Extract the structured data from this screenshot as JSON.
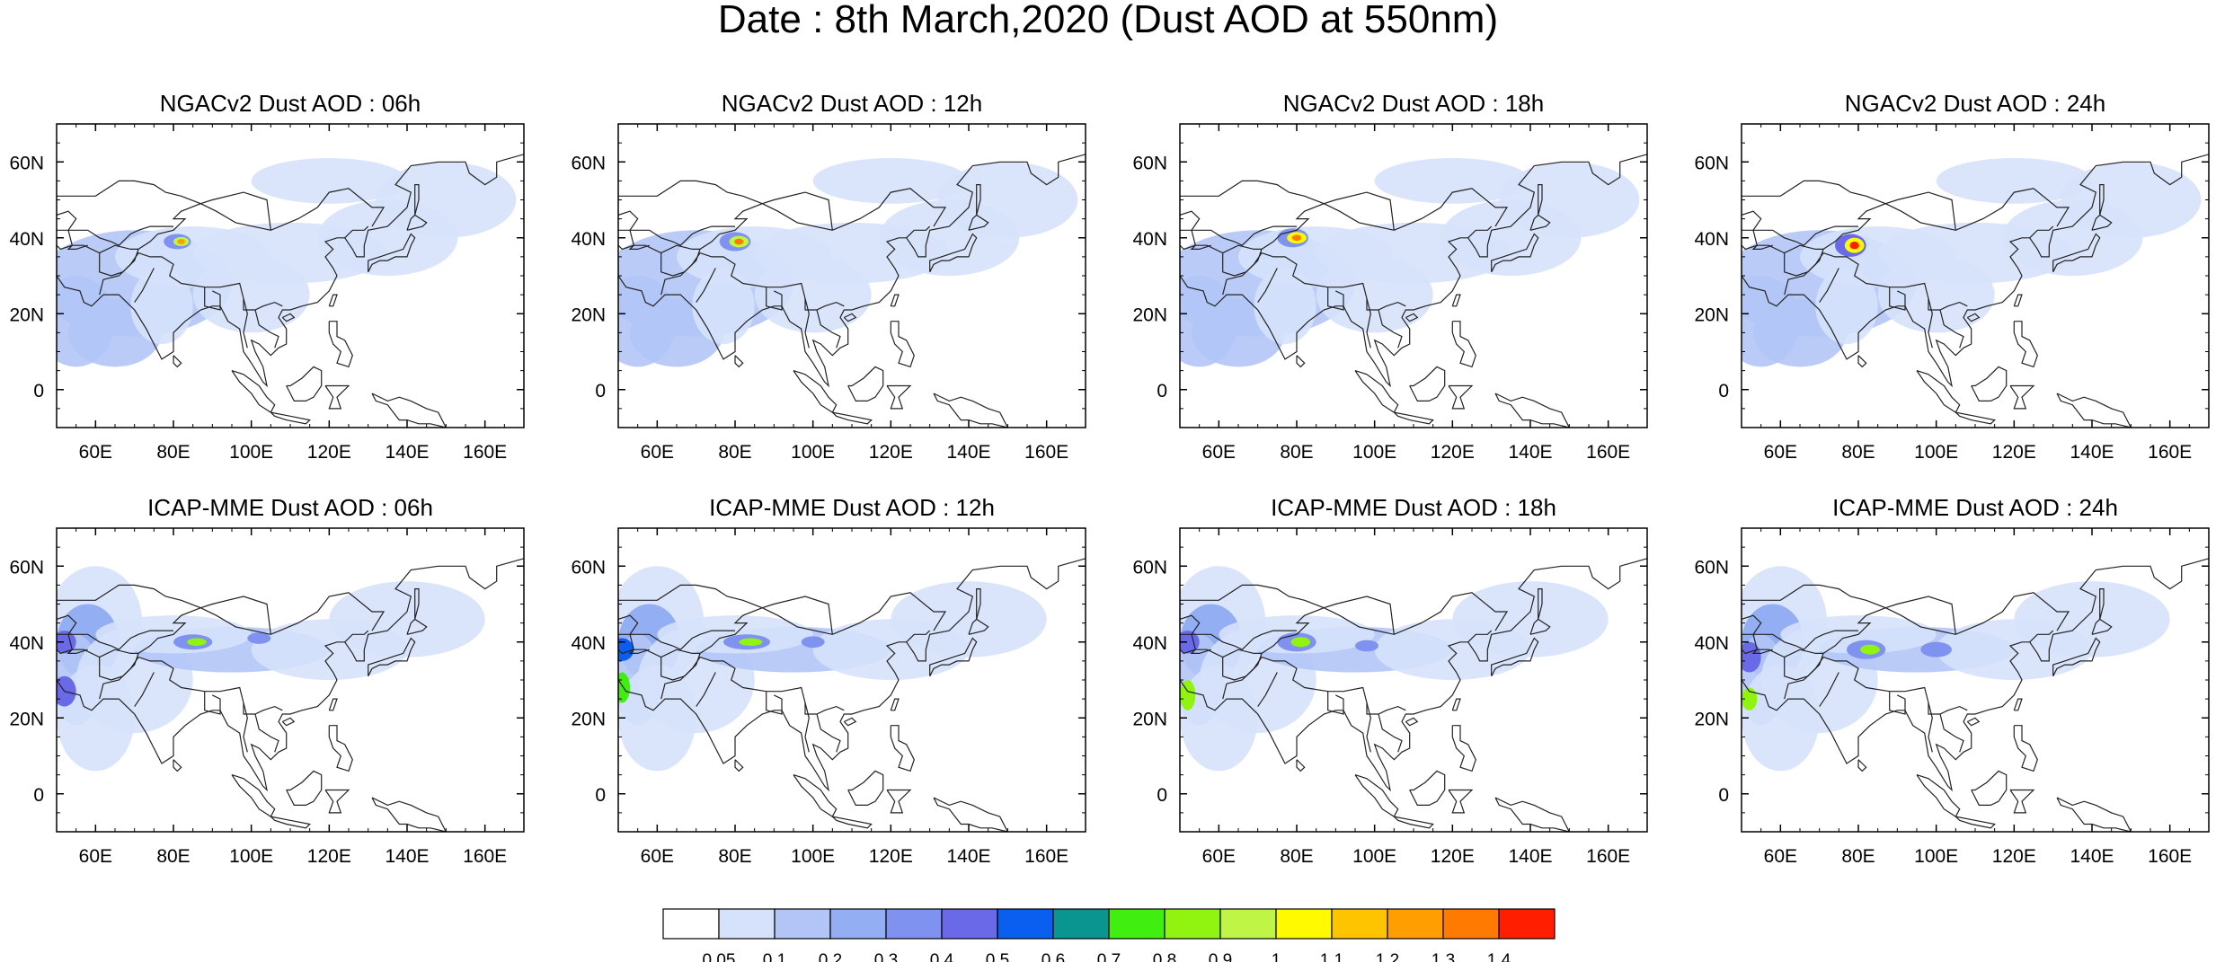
{
  "title": "Date : 8th March,2020 (Dust AOD at 550nm)",
  "panels": [
    {
      "title": "NGACv2 Dust AOD : 06h",
      "model": "NGACv2",
      "lead": "06h"
    },
    {
      "title": "NGACv2 Dust AOD : 12h",
      "model": "NGACv2",
      "lead": "12h"
    },
    {
      "title": "NGACv2 Dust AOD : 18h",
      "model": "NGACv2",
      "lead": "18h"
    },
    {
      "title": "NGACv2 Dust AOD : 24h",
      "model": "NGACv2",
      "lead": "24h"
    },
    {
      "title": "ICAP-MME Dust AOD : 06h",
      "model": "ICAP-MME",
      "lead": "06h"
    },
    {
      "title": "ICAP-MME Dust AOD : 12h",
      "model": "ICAP-MME",
      "lead": "12h"
    },
    {
      "title": "ICAP-MME Dust AOD : 18h",
      "model": "ICAP-MME",
      "lead": "18h"
    },
    {
      "title": "ICAP-MME Dust AOD : 24h",
      "model": "ICAP-MME",
      "lead": "24h"
    }
  ],
  "map": {
    "lon_range": [
      50,
      170
    ],
    "lat_range": [
      -10,
      70
    ],
    "x_ticks": [
      "60E",
      "80E",
      "100E",
      "120E",
      "140E",
      "160E"
    ],
    "y_ticks": [
      "0",
      "20N",
      "40N",
      "60N"
    ]
  },
  "colorbar": {
    "levels": [
      "0.05",
      "0.1",
      "0.2",
      "0.3",
      "0.4",
      "0.5",
      "0.6",
      "0.7",
      "0.8",
      "0.9",
      "1",
      "1.1",
      "1.2",
      "1.3",
      "1.4"
    ],
    "colors": [
      "#ffffff",
      "#d6e2fb",
      "#b3c5f7",
      "#93aef3",
      "#7f92ef",
      "#6a6ae8",
      "#0a5ff0",
      "#0a9590",
      "#40ee10",
      "#90f410",
      "#bff545",
      "#fffa00",
      "#ffc400",
      "#ff9e00",
      "#ff7a00",
      "#ff1e00"
    ]
  }
}
